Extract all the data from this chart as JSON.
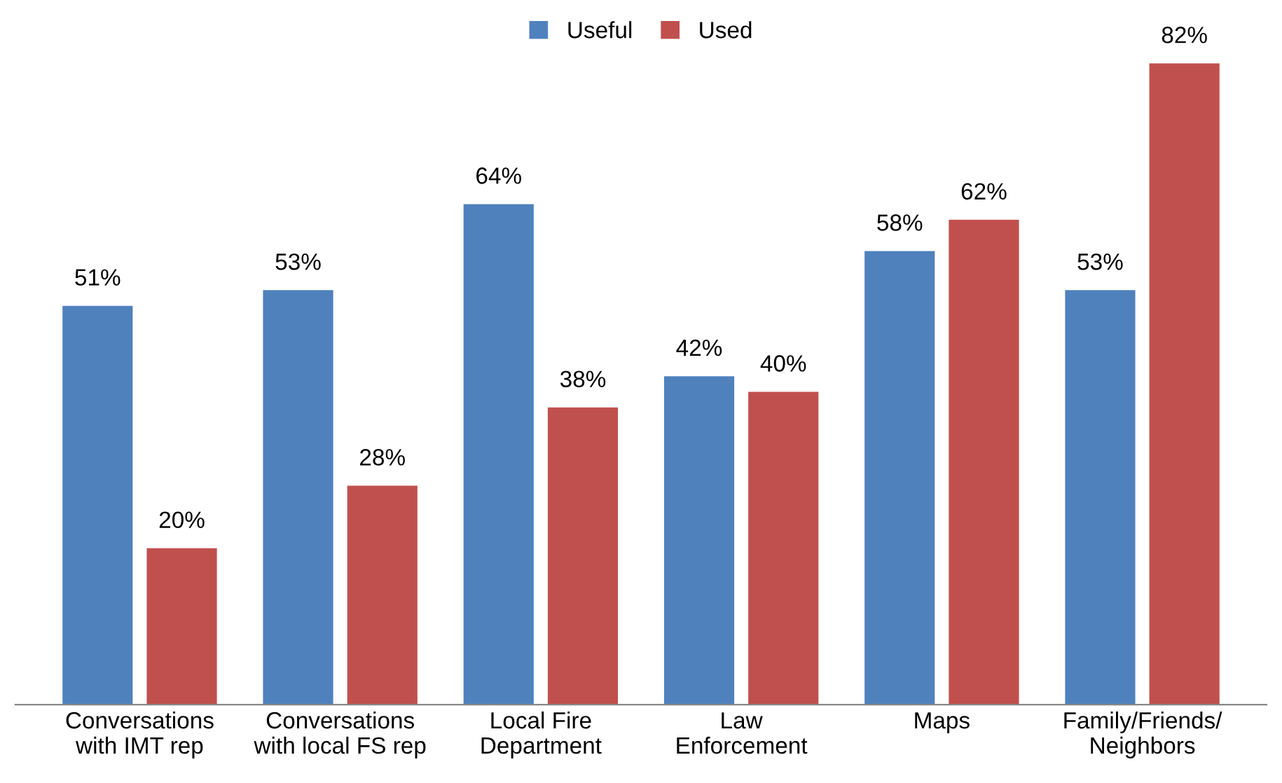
{
  "chart_data": {
    "type": "bar",
    "categories": [
      "Conversations\nwith IMT rep",
      "Conversations\nwith local FS rep",
      "Local Fire\nDepartment",
      "Law\nEnforcement",
      "Maps",
      "Family/Friends/\nNeighbors"
    ],
    "series": [
      {
        "name": "Useful",
        "color": "#4f81bd",
        "values": [
          51,
          53,
          64,
          42,
          58,
          53
        ],
        "value_labels": [
          "51%",
          "53%",
          "64%",
          "42%",
          "58%",
          "53%"
        ]
      },
      {
        "name": "Used",
        "color": "#c0504d",
        "values": [
          20,
          28,
          38,
          40,
          62,
          82
        ],
        "value_labels": [
          "20%",
          "28%",
          "38%",
          "40%",
          "62%",
          "82%"
        ]
      }
    ],
    "legend": "top",
    "grid": false
  }
}
